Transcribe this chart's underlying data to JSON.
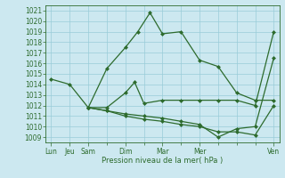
{
  "xlabel": "Pression niveau de la mer( hPa )",
  "background_color": "#cce8f0",
  "grid_color": "#99ccd9",
  "line_color": "#2d6b2d",
  "ylim": [
    1008.5,
    1021.5
  ],
  "xlim": [
    -0.3,
    12.3
  ],
  "yticks": [
    1009,
    1010,
    1011,
    1012,
    1013,
    1014,
    1015,
    1016,
    1017,
    1018,
    1019,
    1020,
    1021
  ],
  "xtick_major_labels": [
    "Lun",
    "Jeu",
    "Sam",
    "Dim",
    "Mar",
    "Mer",
    "Ven"
  ],
  "xtick_major_positions": [
    0,
    1,
    2,
    4,
    6,
    8,
    12
  ],
  "xtick_all_positions": [
    0,
    1,
    2,
    3,
    4,
    5,
    6,
    7,
    8,
    9,
    10,
    11,
    12
  ],
  "line1_x": [
    0,
    1,
    2,
    3,
    4,
    4.67,
    5.33,
    6,
    7,
    8,
    9,
    10,
    11,
    12
  ],
  "line1_y": [
    1014.5,
    1014.0,
    1011.8,
    1015.5,
    1017.5,
    1019.0,
    1020.8,
    1018.8,
    1019.0,
    1016.3,
    1015.7,
    1013.2,
    1012.5,
    1012.5
  ],
  "line2_x": [
    2,
    3,
    4,
    4.5,
    5,
    6,
    7,
    8,
    9,
    10,
    11,
    12
  ],
  "line2_y": [
    1011.8,
    1011.8,
    1013.2,
    1014.2,
    1012.2,
    1012.5,
    1012.5,
    1012.5,
    1012.5,
    1012.5,
    1012.0,
    1019.0
  ],
  "line3_x": [
    2,
    3,
    4,
    5,
    6,
    7,
    8,
    9,
    10,
    11,
    12
  ],
  "line3_y": [
    1011.8,
    1011.5,
    1011.2,
    1011.0,
    1010.8,
    1010.5,
    1010.2,
    1009.0,
    1009.8,
    1010.0,
    1016.5
  ],
  "line4_x": [
    2,
    3,
    4,
    5,
    6,
    7,
    8,
    9,
    10,
    11,
    12
  ],
  "line4_y": [
    1011.8,
    1011.5,
    1011.0,
    1010.7,
    1010.5,
    1010.2,
    1010.0,
    1009.5,
    1009.5,
    1009.2,
    1012.0
  ]
}
